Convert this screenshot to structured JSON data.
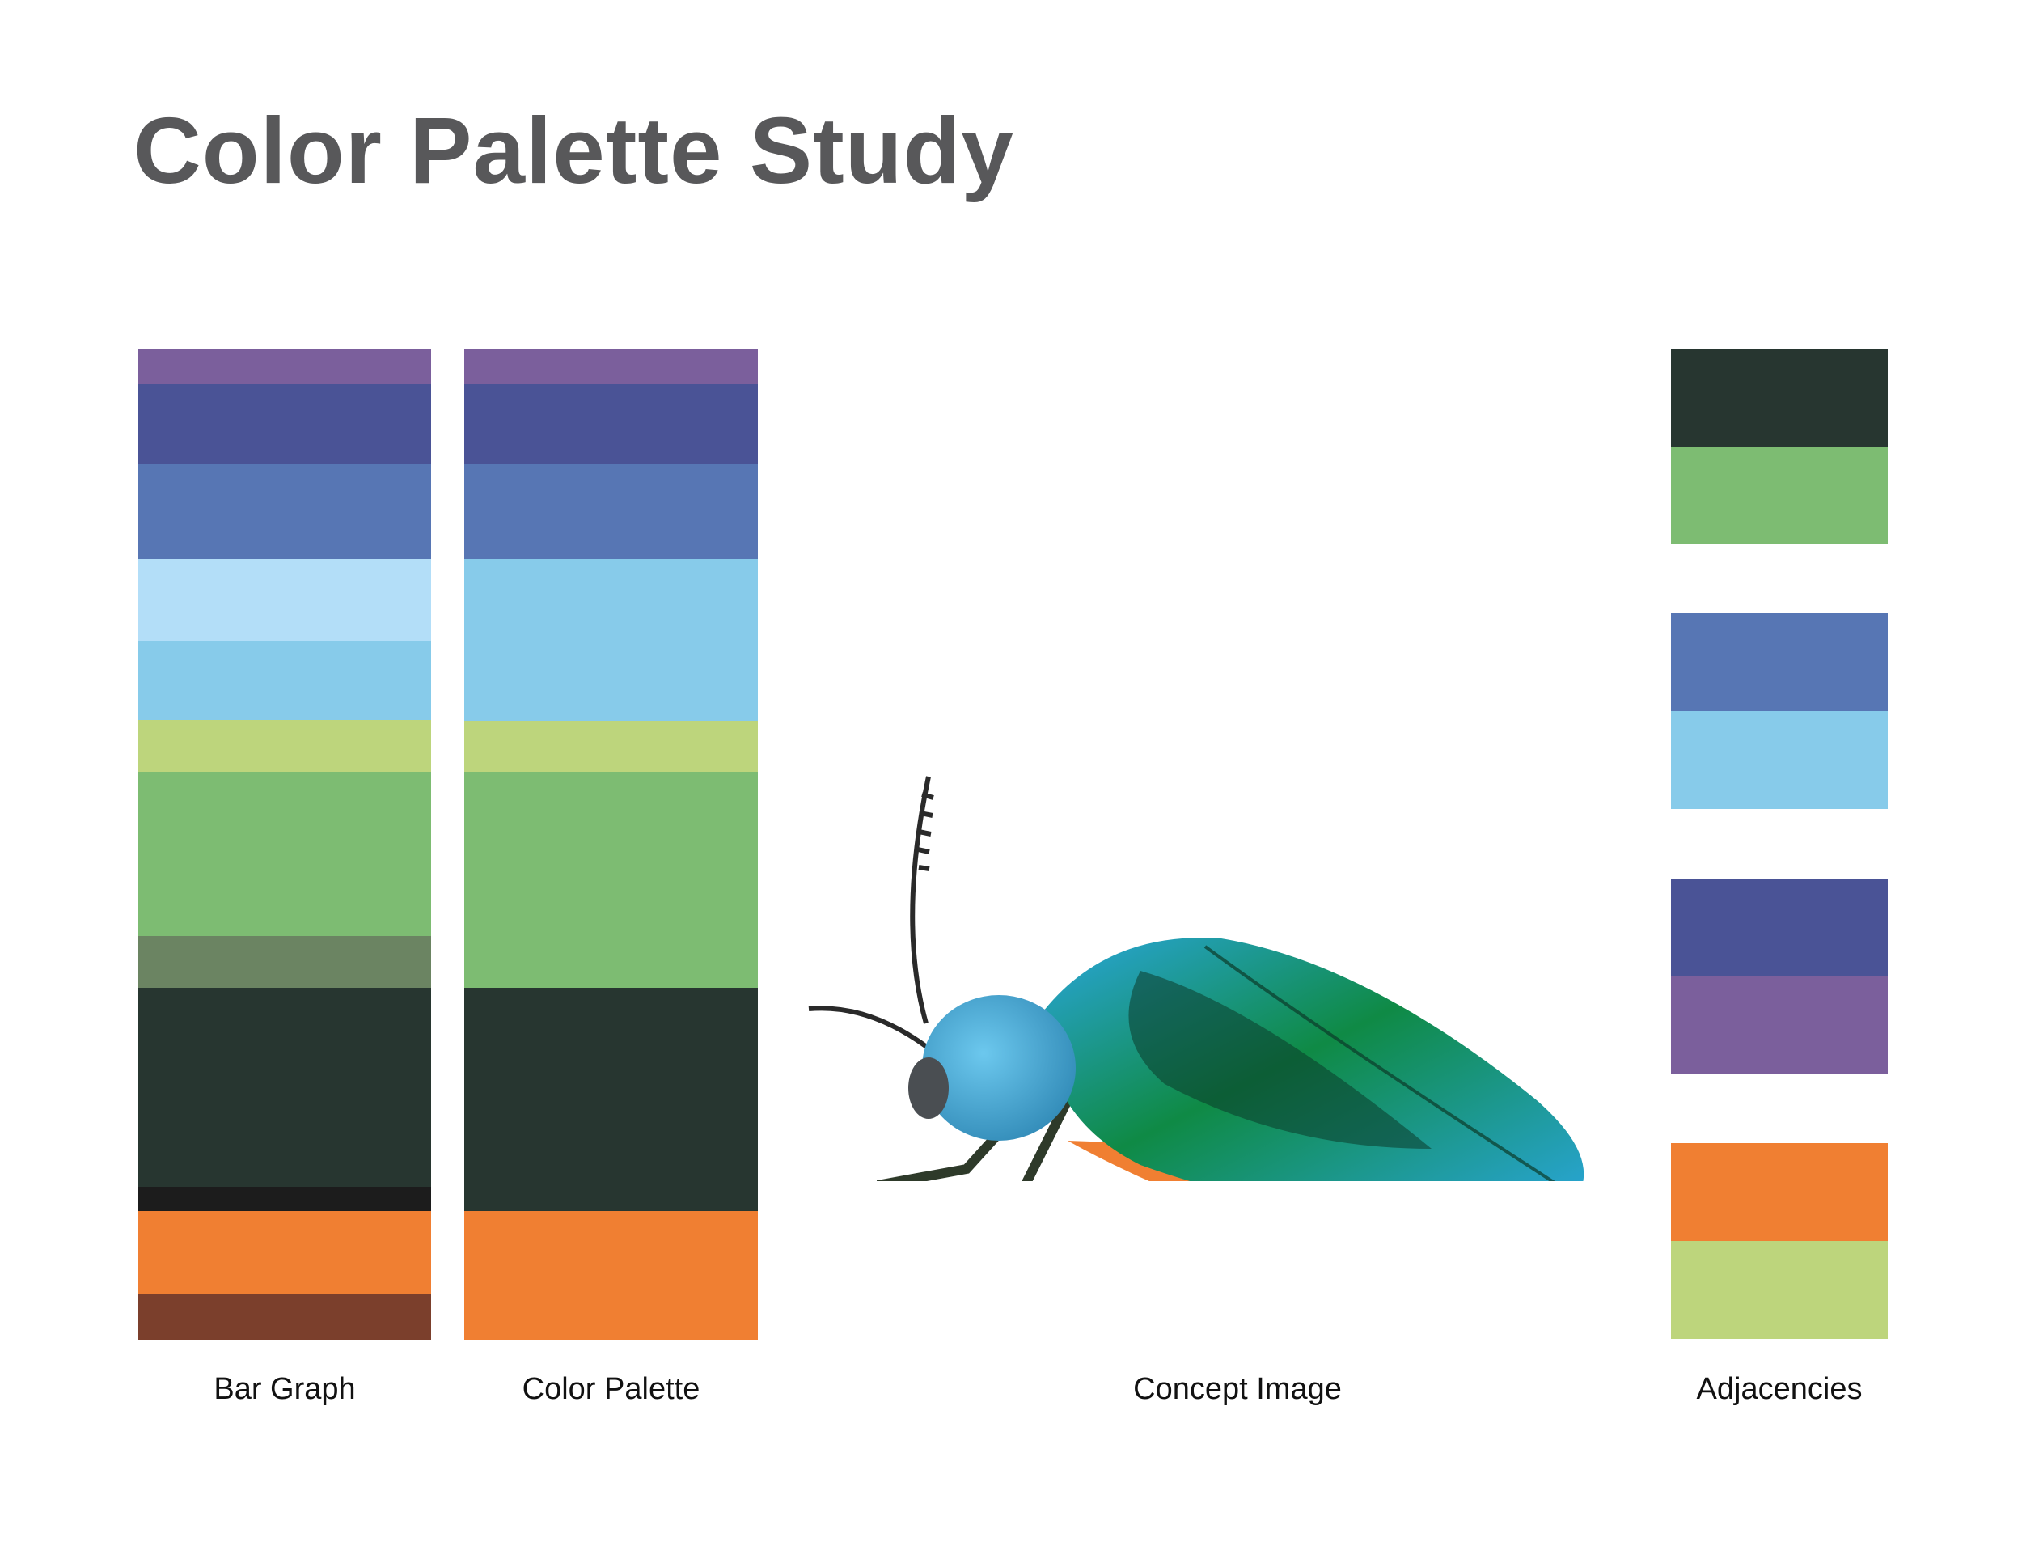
{
  "title": "Color Palette Study",
  "captions": {
    "bar_graph": "Bar Graph",
    "color_palette": "Color Palette",
    "concept_image": "Concept Image",
    "adjacencies": "Adjacencies"
  },
  "bar_graph": [
    {
      "color": "#7b5f9c",
      "share": 0.036
    },
    {
      "color": "#4a5396",
      "share": 0.08
    },
    {
      "color": "#5776b4",
      "share": 0.096
    },
    {
      "color": "#b3def8",
      "share": 0.082
    },
    {
      "color": "#87cbea",
      "share": 0.08
    },
    {
      "color": "#bdd57c",
      "share": 0.052
    },
    {
      "color": "#7dbc72",
      "share": 0.165
    },
    {
      "color": "#6b8462",
      "share": 0.052
    },
    {
      "color": "#273630",
      "share": 0.2
    },
    {
      "color": "#1c1c1c",
      "share": 0.025
    },
    {
      "color": "#f07f32",
      "share": 0.083
    },
    {
      "color": "#7b3f2c",
      "share": 0.046
    }
  ],
  "color_palette": [
    {
      "color": "#7b5f9c",
      "share": 0.036
    },
    {
      "color": "#4a5396",
      "share": 0.08
    },
    {
      "color": "#5776b4",
      "share": 0.096
    },
    {
      "color": "#87cbea",
      "share": 0.162
    },
    {
      "color": "#bdd57c",
      "share": 0.052
    },
    {
      "color": "#7dbc72",
      "share": 0.217
    },
    {
      "color": "#273630",
      "share": 0.225
    },
    {
      "color": "#f07f32",
      "share": 0.129
    }
  ],
  "adjacencies": [
    [
      "#273630",
      "#7dbc72"
    ],
    [
      "#5776b4",
      "#87cbea"
    ],
    [
      "#4a5396",
      "#7b5f9c"
    ],
    [
      "#f07f32",
      "#bdd57c"
    ]
  ],
  "concept_image": {
    "subject": "beetle-icon",
    "colors": {
      "shell_blue": "#2aa6dc",
      "shell_green": "#0f8a45",
      "shell_dark": "#0b3a2a",
      "head": "#2f88b5",
      "abdomen": "#f07f32",
      "legs": "#2e3a2a"
    }
  }
}
